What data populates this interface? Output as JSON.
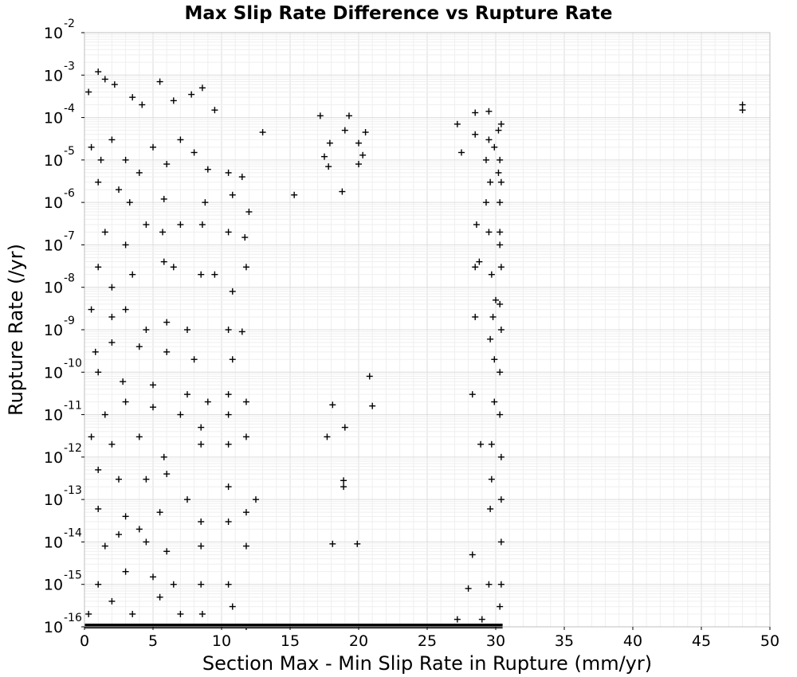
{
  "chart_data": {
    "type": "scatter",
    "title": "Max Slip Rate Difference vs Rupture Rate",
    "xlabel": "Section Max - Min Slip Rate in Rupture (mm/yr)",
    "ylabel": "Rupture Rate (/yr)",
    "xlim": [
      0,
      50
    ],
    "ylim": [
      1e-16,
      0.01
    ],
    "yscale": "log",
    "grid": true,
    "marker": "+",
    "marker_color": "#000000",
    "x_ticks": [
      "0",
      "5",
      "10",
      "15",
      "20",
      "25",
      "30",
      "35",
      "40",
      "45",
      "50"
    ],
    "y_ticks": [
      {
        "base": "10",
        "exp": "-16"
      },
      {
        "base": "10",
        "exp": "-15"
      },
      {
        "base": "10",
        "exp": "-14"
      },
      {
        "base": "10",
        "exp": "-13"
      },
      {
        "base": "10",
        "exp": "-12"
      },
      {
        "base": "10",
        "exp": "-11"
      },
      {
        "base": "10",
        "exp": "-10"
      },
      {
        "base": "10",
        "exp": "-9"
      },
      {
        "base": "10",
        "exp": "-8"
      },
      {
        "base": "10",
        "exp": "-7"
      },
      {
        "base": "10",
        "exp": "-6"
      },
      {
        "base": "10",
        "exp": "-5"
      },
      {
        "base": "10",
        "exp": "-4"
      },
      {
        "base": "10",
        "exp": "-3"
      },
      {
        "base": "10",
        "exp": "-2"
      }
    ],
    "baseline_band": {
      "y": 1e-16,
      "x_range": [
        0,
        30.5
      ]
    },
    "points": [
      [
        1.0,
        0.0012
      ],
      [
        2.2,
        0.0006
      ],
      [
        5.5,
        0.0007
      ],
      [
        1.5,
        0.0008
      ],
      [
        0.3,
        0.0004
      ],
      [
        3.5,
        0.0003
      ],
      [
        4.2,
        0.0002
      ],
      [
        6.5,
        0.00025
      ],
      [
        7.8,
        0.00035
      ],
      [
        8.6,
        0.0005
      ],
      [
        9.5,
        0.00015
      ],
      [
        13.0,
        4.5e-05
      ],
      [
        17.2,
        0.00011
      ],
      [
        19.3,
        0.00011
      ],
      [
        17.5,
        1.2e-05
      ],
      [
        17.9,
        2.5e-05
      ],
      [
        19.0,
        5e-05
      ],
      [
        20.0,
        2.5e-05
      ],
      [
        20.5,
        4.5e-05
      ],
      [
        20.3,
        1.3e-05
      ],
      [
        20.0,
        8e-06
      ],
      [
        17.8,
        7e-06
      ],
      [
        15.3,
        1.5e-06
      ],
      [
        18.8,
        1.8e-06
      ],
      [
        48.0,
        0.0002
      ],
      [
        48.0,
        0.00015
      ],
      [
        27.2,
        7e-05
      ],
      [
        28.5,
        0.00013
      ],
      [
        29.5,
        0.00014
      ],
      [
        30.4,
        7e-05
      ],
      [
        27.5,
        1.5e-05
      ],
      [
        0.5,
        2e-05
      ],
      [
        1.2,
        1e-05
      ],
      [
        2.0,
        3e-05
      ],
      [
        3.0,
        1e-05
      ],
      [
        4.0,
        5e-06
      ],
      [
        5.0,
        2e-05
      ],
      [
        6.0,
        8e-06
      ],
      [
        7.0,
        3e-05
      ],
      [
        8.0,
        1.5e-05
      ],
      [
        9.0,
        6e-06
      ],
      [
        10.5,
        5e-06
      ],
      [
        11.5,
        4e-06
      ],
      [
        1.0,
        3e-06
      ],
      [
        2.5,
        2e-06
      ],
      [
        3.3,
        1e-06
      ],
      [
        5.8,
        1.2e-06
      ],
      [
        8.8,
        1e-06
      ],
      [
        10.8,
        1.5e-06
      ],
      [
        12.0,
        6e-07
      ],
      [
        1.5,
        2e-07
      ],
      [
        3.0,
        1e-07
      ],
      [
        4.5,
        3e-07
      ],
      [
        5.7,
        2e-07
      ],
      [
        8.6,
        3e-07
      ],
      [
        10.5,
        2e-07
      ],
      [
        11.7,
        1.5e-07
      ],
      [
        11.8,
        3e-08
      ],
      [
        7.0,
        3e-07
      ],
      [
        1.0,
        3e-08
      ],
      [
        2.0,
        1e-08
      ],
      [
        3.5,
        2e-08
      ],
      [
        5.8,
        4e-08
      ],
      [
        6.5,
        3e-08
      ],
      [
        8.5,
        2e-08
      ],
      [
        10.8,
        8e-09
      ],
      [
        9.5,
        2e-08
      ],
      [
        0.5,
        3e-09
      ],
      [
        2.0,
        2e-09
      ],
      [
        3.0,
        3e-09
      ],
      [
        4.5,
        1e-09
      ],
      [
        6.0,
        1.5e-09
      ],
      [
        7.5,
        1e-09
      ],
      [
        10.5,
        1e-09
      ],
      [
        11.5,
        9e-10
      ],
      [
        0.8,
        3e-10
      ],
      [
        2.0,
        5e-10
      ],
      [
        4.0,
        4e-10
      ],
      [
        6.0,
        3e-10
      ],
      [
        8.0,
        2e-10
      ],
      [
        10.8,
        2e-10
      ],
      [
        1.0,
        1e-10
      ],
      [
        2.8,
        6e-11
      ],
      [
        5.0,
        5e-11
      ],
      [
        7.5,
        3e-11
      ],
      [
        9.0,
        2e-11
      ],
      [
        10.5,
        3e-11
      ],
      [
        20.8,
        8e-11
      ],
      [
        1.5,
        1e-11
      ],
      [
        3.0,
        2e-11
      ],
      [
        5.0,
        1.5e-11
      ],
      [
        7.0,
        1e-11
      ],
      [
        8.5,
        5e-12
      ],
      [
        10.5,
        1e-11
      ],
      [
        11.8,
        2e-11
      ],
      [
        18.1,
        1.7e-11
      ],
      [
        21.0,
        1.6e-11
      ],
      [
        0.5,
        3e-12
      ],
      [
        2.0,
        2e-12
      ],
      [
        4.0,
        3e-12
      ],
      [
        5.8,
        1e-12
      ],
      [
        8.5,
        2e-12
      ],
      [
        10.5,
        2e-12
      ],
      [
        11.8,
        3e-12
      ],
      [
        17.7,
        3e-12
      ],
      [
        19.0,
        5e-12
      ],
      [
        1.0,
        5e-13
      ],
      [
        2.5,
        3e-13
      ],
      [
        4.5,
        3e-13
      ],
      [
        6.0,
        4e-13
      ],
      [
        7.5,
        1e-13
      ],
      [
        10.5,
        2e-13
      ],
      [
        12.5,
        1e-13
      ],
      [
        18.9,
        2e-13
      ],
      [
        18.9,
        2.8e-13
      ],
      [
        1.0,
        6e-14
      ],
      [
        3.0,
        4e-14
      ],
      [
        4.0,
        2e-14
      ],
      [
        5.5,
        5e-14
      ],
      [
        8.5,
        3e-14
      ],
      [
        10.5,
        3e-14
      ],
      [
        11.8,
        5e-14
      ],
      [
        1.5,
        8e-15
      ],
      [
        2.5,
        1.5e-14
      ],
      [
        4.5,
        1e-14
      ],
      [
        6.0,
        6e-15
      ],
      [
        8.5,
        8e-15
      ],
      [
        10.5,
        1e-15
      ],
      [
        11.8,
        8e-15
      ],
      [
        18.1,
        9e-15
      ],
      [
        19.9,
        9e-15
      ],
      [
        1.0,
        1e-15
      ],
      [
        3.0,
        2e-15
      ],
      [
        5.0,
        1.5e-15
      ],
      [
        6.5,
        1e-15
      ],
      [
        8.5,
        1e-15
      ],
      [
        11.8,
        1e-16
      ],
      [
        0.3,
        2e-16
      ],
      [
        2.0,
        4e-16
      ],
      [
        3.5,
        2e-16
      ],
      [
        5.5,
        5e-16
      ],
      [
        7.0,
        2e-16
      ],
      [
        8.6,
        2e-16
      ],
      [
        10.8,
        3e-16
      ],
      [
        27.2,
        1.5e-16
      ],
      [
        28.0,
        8e-16
      ],
      [
        28.3,
        5e-15
      ],
      [
        29.5,
        1e-15
      ],
      [
        29.6,
        6e-14
      ],
      [
        29.7,
        3e-13
      ],
      [
        28.9,
        2e-12
      ],
      [
        29.7,
        2e-12
      ],
      [
        29.9,
        2e-11
      ],
      [
        28.3,
        3e-11
      ],
      [
        29.6,
        6e-10
      ],
      [
        29.9,
        2e-10
      ],
      [
        28.5,
        2e-09
      ],
      [
        29.8,
        2e-09
      ],
      [
        30.0,
        5e-09
      ],
      [
        28.8,
        4e-08
      ],
      [
        28.5,
        3e-08
      ],
      [
        29.7,
        2e-08
      ],
      [
        30.3,
        4e-09
      ],
      [
        28.6,
        3e-07
      ],
      [
        29.5,
        2e-07
      ],
      [
        30.3,
        1e-07
      ],
      [
        29.3,
        1e-06
      ],
      [
        30.3,
        1e-06
      ],
      [
        29.6,
        3e-06
      ],
      [
        30.2,
        5e-06
      ],
      [
        29.3,
        1e-05
      ],
      [
        29.9,
        2e-05
      ],
      [
        30.3,
        1e-05
      ],
      [
        28.5,
        4e-05
      ],
      [
        29.5,
        3e-05
      ],
      [
        30.2,
        5e-05
      ],
      [
        30.4,
        3e-06
      ],
      [
        30.3,
        2e-07
      ],
      [
        30.4,
        3e-08
      ],
      [
        30.4,
        1e-09
      ],
      [
        30.3,
        1e-10
      ],
      [
        30.3,
        1e-11
      ],
      [
        30.4,
        1e-12
      ],
      [
        30.4,
        1e-13
      ],
      [
        30.4,
        1e-14
      ],
      [
        30.4,
        1e-15
      ],
      [
        30.3,
        3e-16
      ],
      [
        29.0,
        1.5e-16
      ]
    ]
  }
}
